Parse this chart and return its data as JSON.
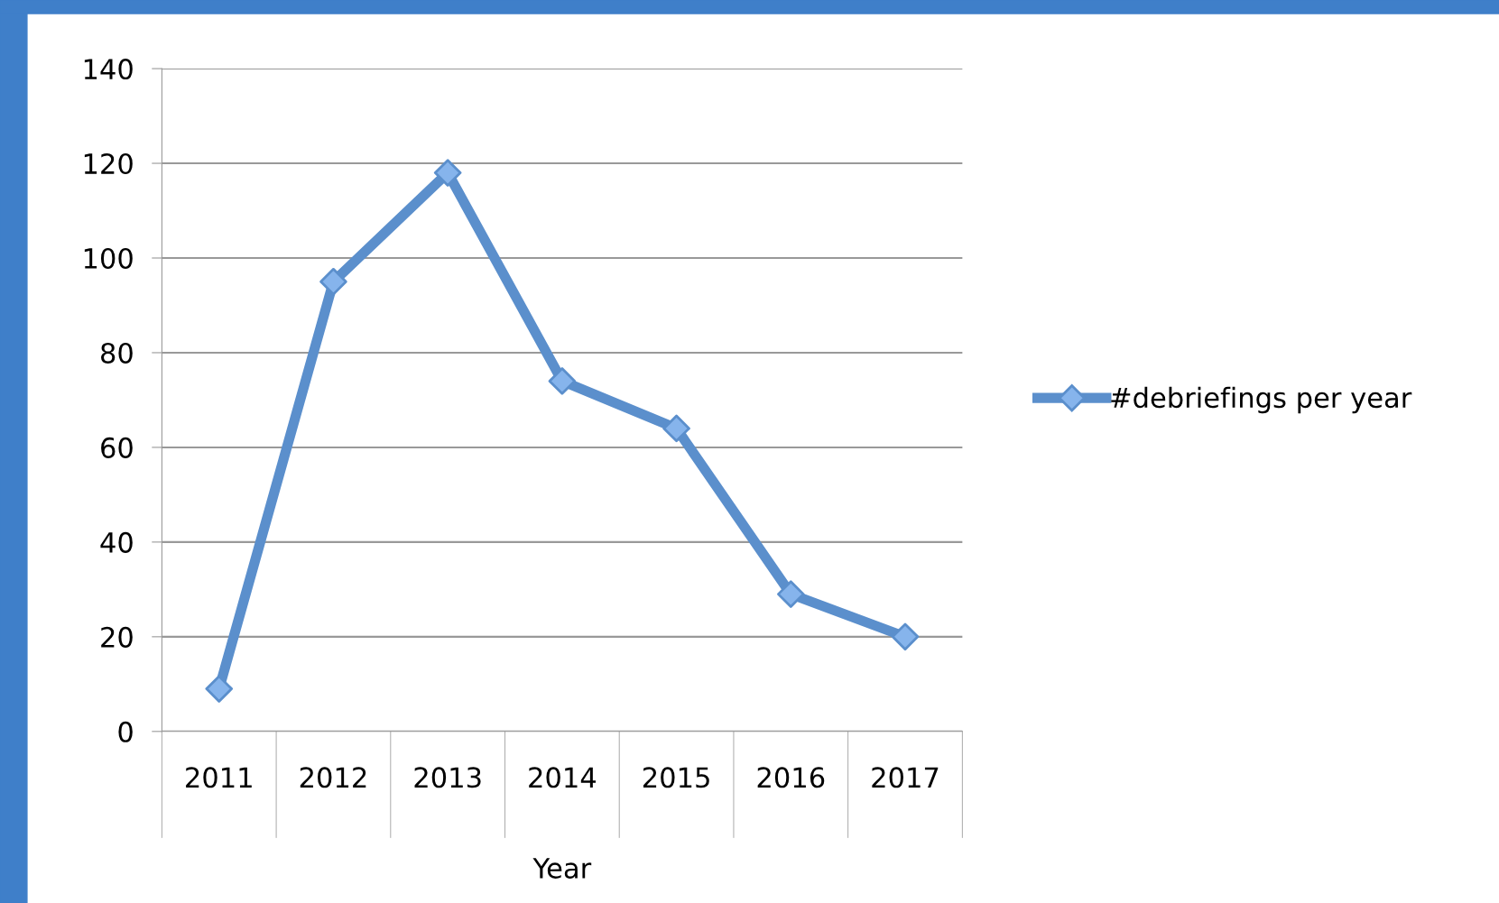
{
  "chart_data": {
    "type": "line",
    "xlabel": "Year",
    "categories": [
      "2011",
      "2012",
      "2013",
      "2014",
      "2015",
      "2016",
      "2017"
    ],
    "series": [
      {
        "name": "#debriefings per year",
        "color": "#5b8fcc",
        "values": [
          9,
          95,
          118,
          74,
          64,
          29,
          20
        ]
      }
    ],
    "ylim": [
      0,
      140
    ],
    "yticks": [
      0,
      20,
      40,
      60,
      80,
      100,
      120,
      140
    ],
    "grid": "y",
    "legend": "right",
    "marker": "diamond",
    "line_style": "solid"
  }
}
